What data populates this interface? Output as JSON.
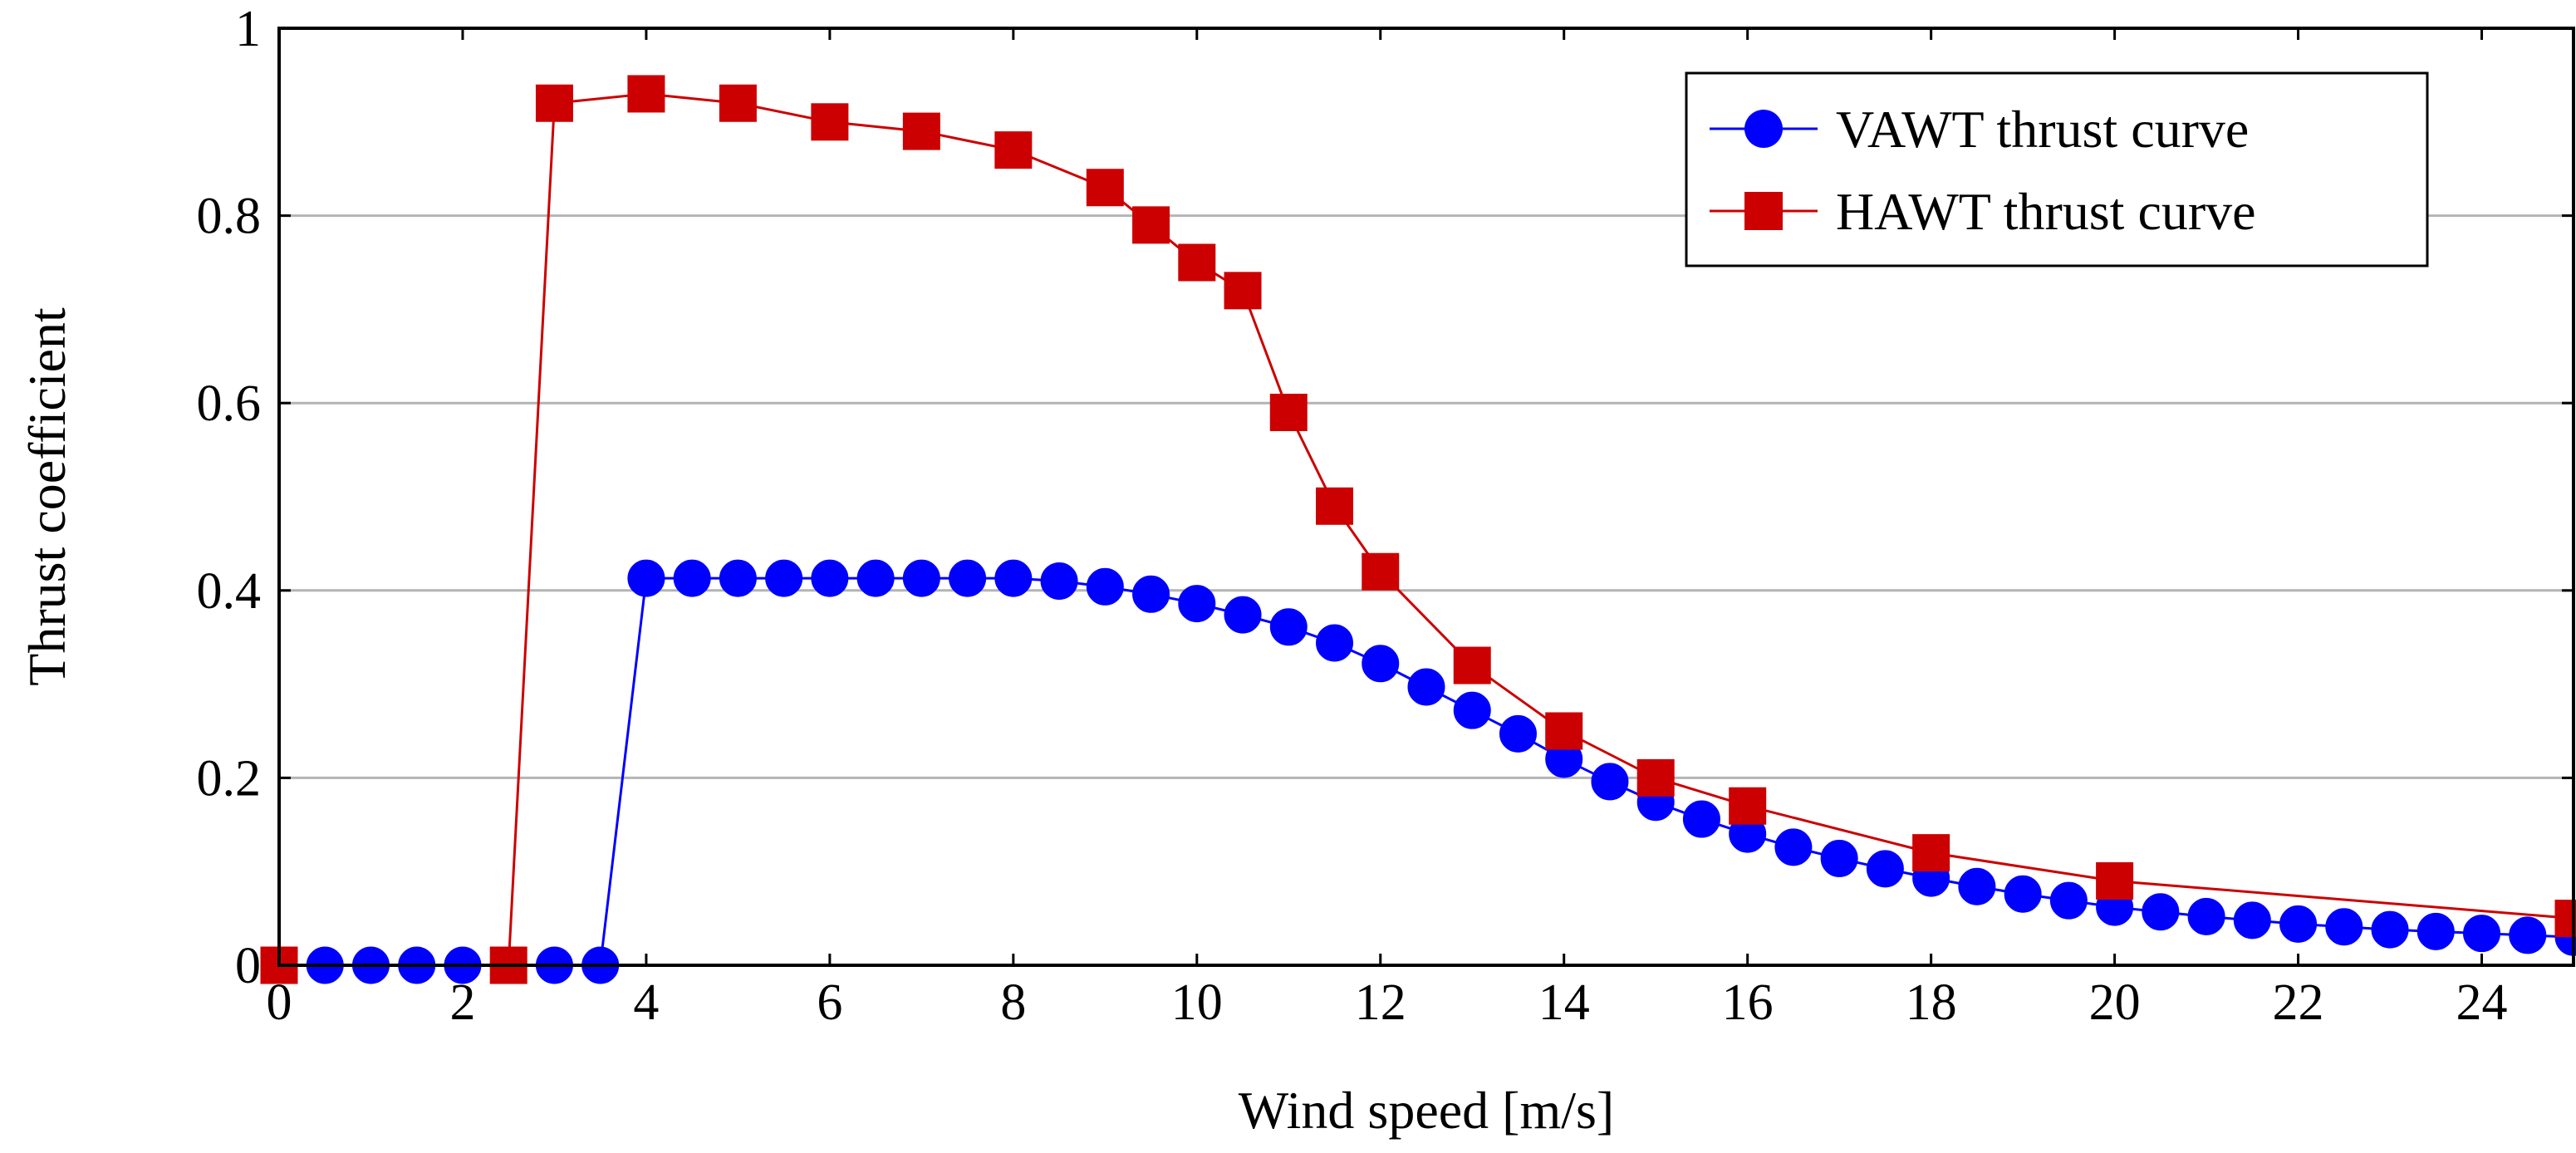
{
  "chart_data": {
    "type": "line",
    "title": "",
    "xlabel": "Wind speed [m/s]",
    "ylabel": "Thrust coefficient",
    "xlim": [
      0,
      25
    ],
    "ylim": [
      0,
      1
    ],
    "x_ticks": [
      0,
      2,
      4,
      6,
      8,
      10,
      12,
      14,
      16,
      18,
      20,
      22,
      24
    ],
    "x_tick_labels": [
      "0",
      "2",
      "4",
      "6",
      "8",
      "10",
      "12",
      "14",
      "16",
      "18",
      "20",
      "22",
      "24"
    ],
    "y_ticks": [
      0,
      0.2,
      0.4,
      0.6,
      0.8,
      1
    ],
    "y_tick_labels": [
      "0",
      "0.2",
      "0.4",
      "0.6",
      "0.8",
      "1"
    ],
    "grid": "horizontal",
    "legend_position": "top-right",
    "series": [
      {
        "name": "VAWT thrust curve",
        "marker": "circle",
        "color": "#0000ff",
        "x": [
          0,
          0.5,
          1,
          1.5,
          2,
          2.5,
          3,
          3.5,
          4,
          4.5,
          5,
          5.5,
          6,
          6.5,
          7,
          7.5,
          8,
          8.5,
          9,
          9.5,
          10,
          10.5,
          11,
          11.5,
          12,
          12.5,
          13,
          13.5,
          14,
          14.5,
          15,
          15.5,
          16,
          16.5,
          17,
          17.5,
          18,
          18.5,
          19,
          19.5,
          20,
          20.5,
          21,
          21.5,
          22,
          22.5,
          23,
          23.5,
          24,
          24.5,
          25
        ],
        "y": [
          0,
          0,
          0,
          0,
          0,
          0,
          0,
          0,
          0.413,
          0.413,
          0.413,
          0.413,
          0.413,
          0.413,
          0.413,
          0.413,
          0.413,
          0.41,
          0.404,
          0.396,
          0.386,
          0.374,
          0.361,
          0.344,
          0.322,
          0.297,
          0.272,
          0.247,
          0.22,
          0.196,
          0.174,
          0.156,
          0.14,
          0.126,
          0.114,
          0.103,
          0.093,
          0.084,
          0.076,
          0.069,
          0.062,
          0.057,
          0.052,
          0.048,
          0.044,
          0.041,
          0.038,
          0.036,
          0.034,
          0.032,
          0.03
        ]
      },
      {
        "name": "HAWT thrust curve",
        "marker": "square",
        "color": "#cc0000",
        "x": [
          0,
          2.5,
          3,
          4,
          5,
          6,
          7,
          8,
          9,
          9.5,
          10,
          10.5,
          11,
          11.5,
          12,
          13,
          14,
          15,
          16,
          18,
          20,
          25
        ],
        "y": [
          0,
          0,
          0.92,
          0.93,
          0.92,
          0.9,
          0.89,
          0.87,
          0.83,
          0.79,
          0.75,
          0.72,
          0.59,
          0.49,
          0.42,
          0.32,
          0.25,
          0.2,
          0.17,
          0.12,
          0.09,
          0.05
        ]
      }
    ]
  }
}
